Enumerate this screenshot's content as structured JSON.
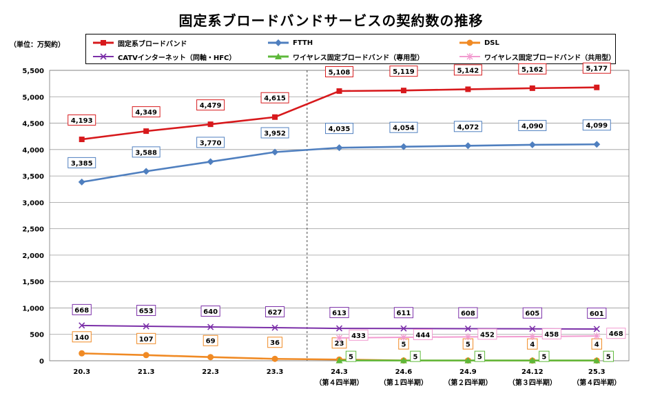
{
  "title": "固定系ブロードバンドサービスの契約数の推移",
  "unit_label": "（単位：万契約）",
  "chart_data": {
    "type": "line",
    "title": "固定系ブロードバンドサービスの契約数の推移",
    "ylim": [
      0,
      5500
    ],
    "yticks": [
      0,
      500,
      1000,
      1500,
      2000,
      2500,
      3000,
      3500,
      4000,
      4500,
      5000,
      5500
    ],
    "ytick_labels": [
      "0",
      "500",
      "1,000",
      "1,500",
      "2,000",
      "2,500",
      "3,000",
      "3,500",
      "4,000",
      "4,500",
      "5,000",
      "5,500"
    ],
    "categories": [
      "20.3",
      "21.3",
      "22.3",
      "23.3",
      "24.3",
      "24.6",
      "24.9",
      "24.12",
      "25.3"
    ],
    "category_sublabels": [
      "",
      "",
      "",
      "",
      "（第４四半期）",
      "（第１四半期）",
      "（第２四半期）",
      "（第３四半期）",
      "（第４四半期）"
    ],
    "grid": true,
    "divider_between": [
      "23.3",
      "24.3"
    ],
    "legend_position": "top",
    "series": [
      {
        "name": "固定系ブロードバンド",
        "color": "#d7191c",
        "marker": "square",
        "values": [
          4193,
          4349,
          4479,
          4615,
          5108,
          5119,
          5142,
          5162,
          5177
        ],
        "labels": [
          "4,193",
          "4,349",
          "4,479",
          "4,615",
          "5,108",
          "5,119",
          "5,142",
          "5,162",
          "5,177"
        ]
      },
      {
        "name": "FTTH",
        "color": "#4f7fbf",
        "marker": "diamond",
        "values": [
          3385,
          3588,
          3770,
          3952,
          4035,
          4054,
          4072,
          4090,
          4099
        ],
        "labels": [
          "3,385",
          "3,588",
          "3,770",
          "3,952",
          "4,035",
          "4,054",
          "4,072",
          "4,090",
          "4,099"
        ]
      },
      {
        "name": "DSL",
        "color": "#f08a24",
        "marker": "circle",
        "values": [
          140,
          107,
          69,
          36,
          23,
          5,
          5,
          4,
          4
        ],
        "labels": [
          "140",
          "107",
          "69",
          "36",
          "23",
          "5",
          "5",
          "4",
          "4"
        ]
      },
      {
        "name": "CATVインターネット（同軸・HFC）",
        "color": "#7b2fa8",
        "marker": "x",
        "values": [
          668,
          653,
          640,
          627,
          613,
          611,
          608,
          605,
          601
        ],
        "labels": [
          "668",
          "653",
          "640",
          "627",
          "613",
          "611",
          "608",
          "605",
          "601"
        ]
      },
      {
        "name": "ワイヤレス固定ブロードバンド（専用型）",
        "color": "#5db83a",
        "marker": "triangle",
        "values": [
          null,
          null,
          null,
          null,
          5,
          5,
          5,
          5,
          5
        ],
        "labels": [
          "",
          "",
          "",
          "",
          "5",
          "5",
          "5",
          "5",
          "5"
        ]
      },
      {
        "name": "ワイヤレス固定ブロードバンド（共用型）",
        "color": "#f29bd0",
        "marker": "star",
        "values": [
          null,
          null,
          null,
          null,
          433,
          444,
          452,
          458,
          468
        ],
        "labels": [
          "",
          "",
          "",
          "",
          "433",
          "444",
          "452",
          "458",
          "468"
        ]
      }
    ]
  }
}
